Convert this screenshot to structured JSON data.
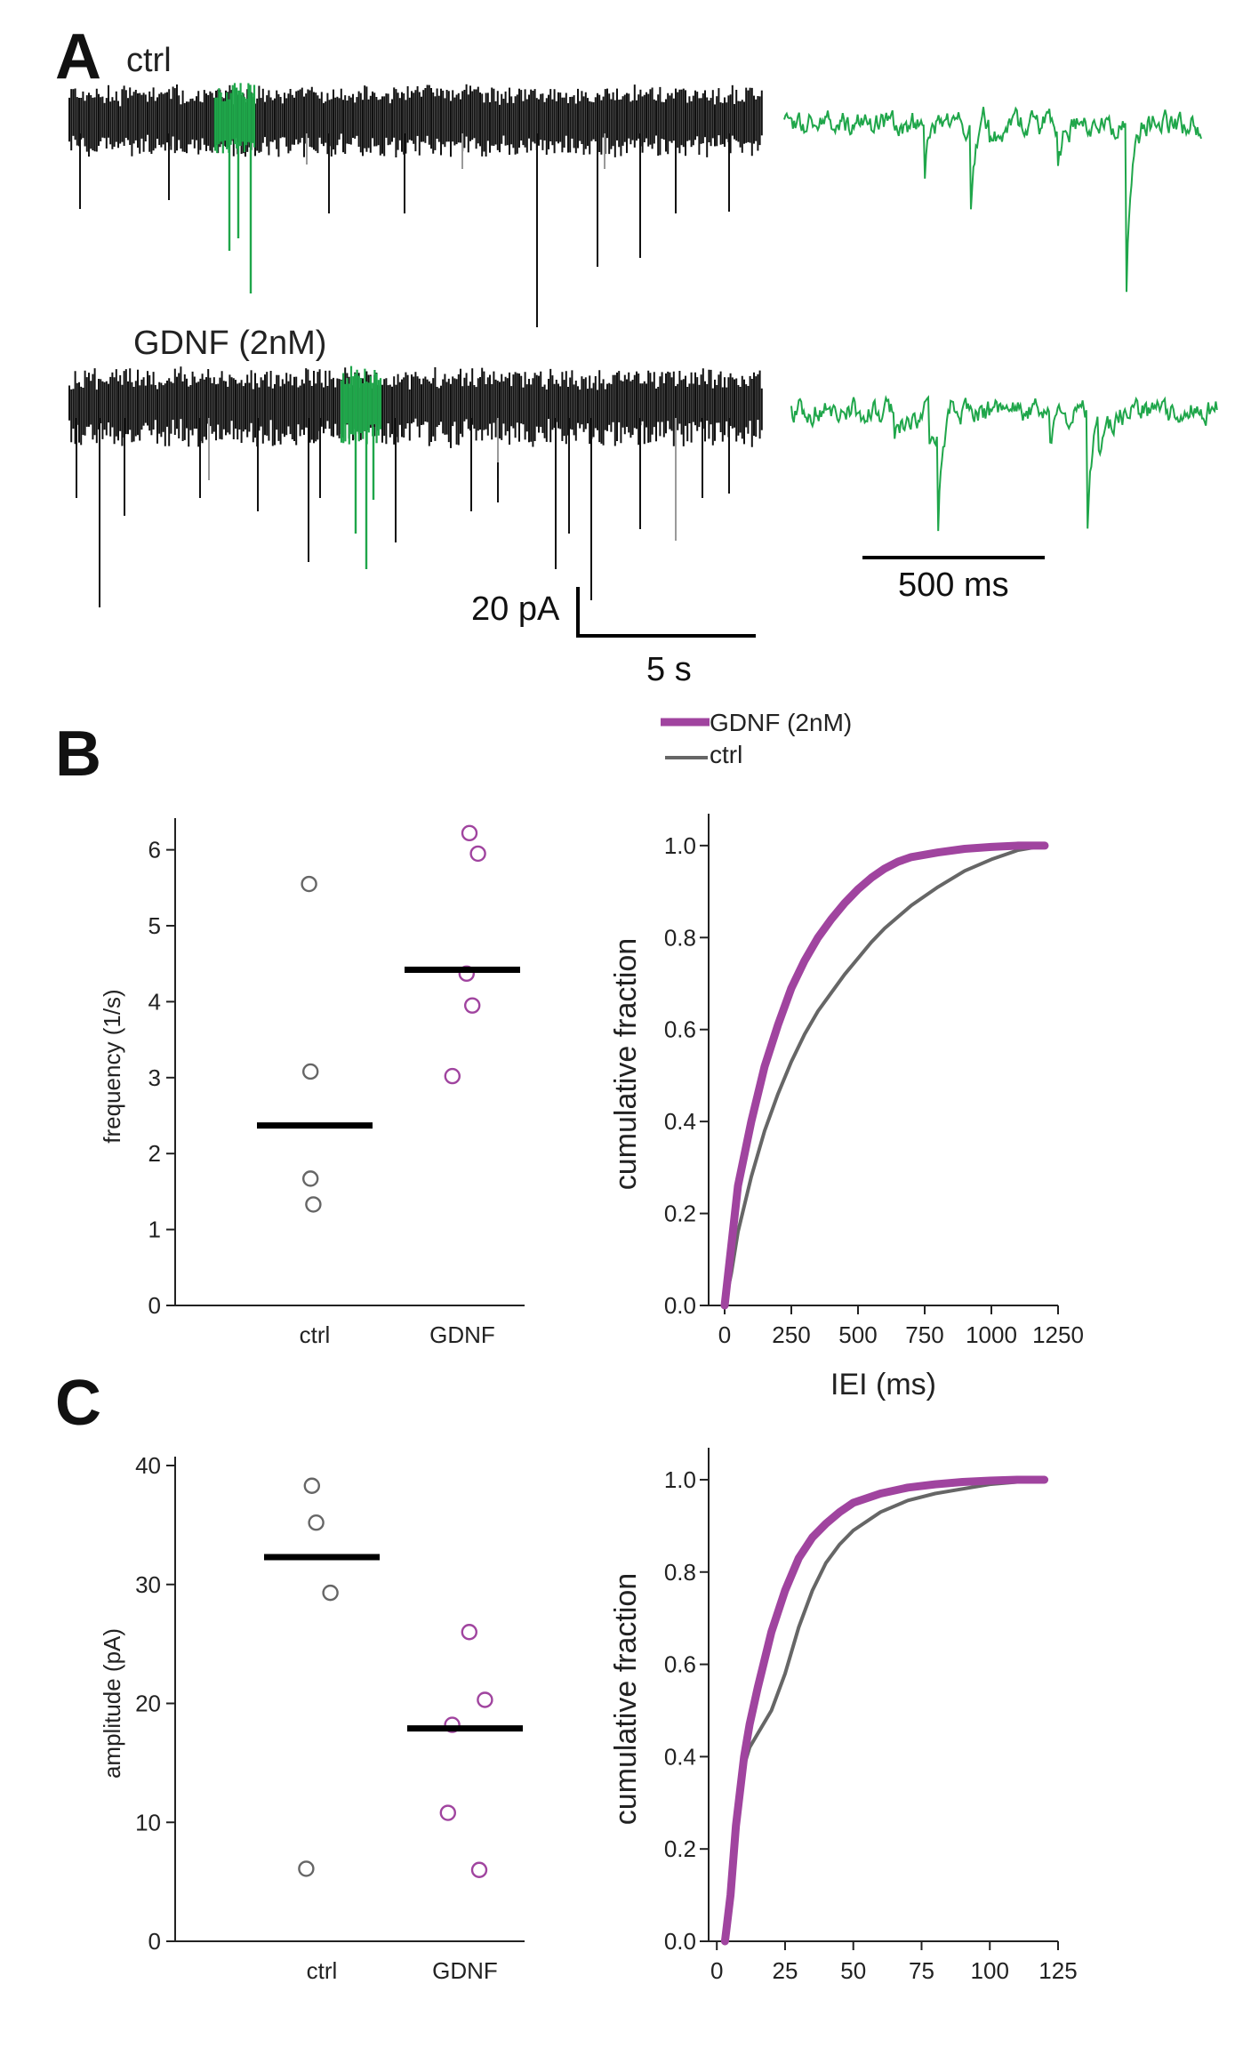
{
  "panels": {
    "A": "A",
    "B": "B",
    "C": "C"
  },
  "traces": {
    "ctrl_label": "ctrl",
    "gdnf_label": "GDNF (2nM)",
    "scale_amplitude": "20 pA",
    "scale_time_long": "5 s",
    "scale_time_short": "500 ms"
  },
  "legend": {
    "gdnf": "GDNF (2nM)",
    "ctrl": "ctrl"
  },
  "colors": {
    "ctrl_trace": "#111111",
    "highlight": "#1fa64a",
    "gdnf": "#a0449f",
    "ctrl": "#666666",
    "median_bar": "#000000"
  },
  "chart_data": [
    {
      "id": "B-left",
      "type": "scatter",
      "categories": [
        "ctrl",
        "GDNF"
      ],
      "ylabel": "frequency (1/s)",
      "ylim": [
        0,
        6.3
      ],
      "yticks": [
        0,
        1,
        2,
        3,
        4,
        5,
        6
      ],
      "series": [
        {
          "name": "ctrl",
          "points": [
            [
              -0.04,
              5.55
            ],
            [
              -0.03,
              3.08
            ],
            [
              -0.03,
              1.67
            ],
            [
              -0.01,
              1.33
            ]
          ],
          "median": 2.37
        },
        {
          "name": "GDNF",
          "points": [
            [
              0.05,
              6.22
            ],
            [
              0.11,
              5.95
            ],
            [
              0.03,
              4.37
            ],
            [
              0.07,
              3.95
            ],
            [
              -0.07,
              3.02
            ]
          ],
          "median": 4.42
        }
      ]
    },
    {
      "id": "B-right",
      "type": "line",
      "xlabel": "IEI (ms)",
      "ylabel": "cumulative fraction",
      "xlim": [
        -60,
        1250
      ],
      "ylim": [
        0,
        1.05
      ],
      "xticks": [
        0,
        250,
        500,
        750,
        1000,
        1250
      ],
      "yticks": [
        0.0,
        0.2,
        0.4,
        0.6,
        0.8,
        1.0
      ],
      "ytick_labels": [
        "0.0",
        "0.2",
        "0.4",
        "0.6",
        "0.8",
        "1.0"
      ],
      "series": [
        {
          "name": "GDNF (2nM)",
          "x": [
            0,
            25,
            50,
            100,
            150,
            200,
            250,
            300,
            350,
            400,
            450,
            500,
            550,
            600,
            650,
            700,
            800,
            900,
            1000,
            1100,
            1200
          ],
          "y": [
            0,
            0.13,
            0.26,
            0.4,
            0.52,
            0.61,
            0.69,
            0.75,
            0.8,
            0.84,
            0.875,
            0.905,
            0.93,
            0.95,
            0.965,
            0.975,
            0.985,
            0.993,
            0.997,
            1.0,
            1.0
          ]
        },
        {
          "name": "ctrl",
          "x": [
            0,
            25,
            50,
            100,
            150,
            200,
            250,
            300,
            350,
            400,
            450,
            500,
            550,
            600,
            650,
            700,
            800,
            900,
            1000,
            1100,
            1200
          ],
          "y": [
            0,
            0.07,
            0.16,
            0.28,
            0.38,
            0.46,
            0.53,
            0.59,
            0.64,
            0.68,
            0.72,
            0.755,
            0.79,
            0.82,
            0.845,
            0.87,
            0.91,
            0.945,
            0.97,
            0.99,
            1.0
          ]
        }
      ]
    },
    {
      "id": "C-left",
      "type": "scatter",
      "categories": [
        "ctrl",
        "GDNF"
      ],
      "ylabel": "amplitude (pA)",
      "ylim": [
        0,
        40
      ],
      "yticks": [
        0,
        10,
        20,
        30,
        40
      ],
      "series": [
        {
          "name": "ctrl",
          "points": [
            [
              -0.07,
              38.3
            ],
            [
              -0.04,
              35.2
            ],
            [
              0.06,
              29.3
            ],
            [
              -0.11,
              6.1
            ]
          ],
          "median": 32.3
        },
        {
          "name": "GDNF",
          "points": [
            [
              0.03,
              26.0
            ],
            [
              0.14,
              20.3
            ],
            [
              -0.09,
              18.2
            ],
            [
              -0.12,
              10.8
            ],
            [
              0.1,
              6.0
            ]
          ],
          "median": 17.9
        }
      ]
    },
    {
      "id": "C-right",
      "type": "line",
      "xlabel": "",
      "ylabel": "cumulative fraction",
      "xlim": [
        -3,
        125
      ],
      "ylim": [
        0,
        1.05
      ],
      "xticks": [
        0,
        25,
        50,
        75,
        100,
        125
      ],
      "yticks": [
        0.0,
        0.2,
        0.4,
        0.6,
        0.8,
        1.0
      ],
      "ytick_labels": [
        "0.0",
        "0.2",
        "0.4",
        "0.6",
        "0.8",
        "1.0"
      ],
      "series": [
        {
          "name": "GDNF (2nM)",
          "x": [
            3,
            5,
            7,
            10,
            12,
            15,
            20,
            25,
            30,
            35,
            40,
            45,
            50,
            60,
            70,
            80,
            90,
            100,
            110,
            120
          ],
          "y": [
            0,
            0.1,
            0.25,
            0.4,
            0.47,
            0.55,
            0.67,
            0.76,
            0.83,
            0.875,
            0.905,
            0.93,
            0.95,
            0.97,
            0.983,
            0.99,
            0.995,
            0.998,
            1.0,
            1.0
          ]
        },
        {
          "name": "ctrl",
          "x": [
            3,
            5,
            7,
            10,
            12,
            15,
            20,
            25,
            30,
            35,
            40,
            45,
            50,
            60,
            70,
            80,
            90,
            100,
            110,
            120
          ],
          "y": [
            0,
            0.08,
            0.22,
            0.38,
            0.42,
            0.45,
            0.5,
            0.58,
            0.68,
            0.76,
            0.82,
            0.86,
            0.89,
            0.93,
            0.955,
            0.97,
            0.98,
            0.99,
            0.995,
            1.0
          ]
        }
      ]
    }
  ]
}
